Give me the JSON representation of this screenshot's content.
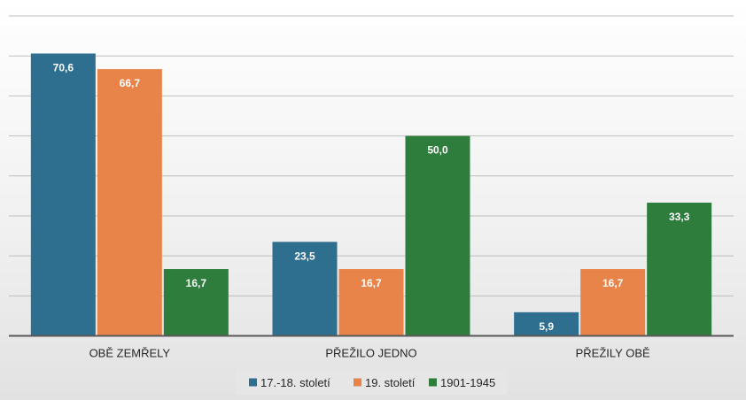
{
  "chart_data": {
    "type": "bar",
    "title": "",
    "xlabel": "",
    "ylabel": "",
    "categories": [
      "OBĚ ZEMŘELY",
      "PŘEŽILO JEDNO",
      "PŘEŽILY OBĚ"
    ],
    "series": [
      {
        "name": "17.-18. století",
        "color": "#2e6e8e",
        "values": [
          70.6,
          23.5,
          5.9
        ],
        "labels": [
          "70,6",
          "23,5",
          "5,9"
        ]
      },
      {
        "name": "19. století",
        "color": "#e8844a",
        "values": [
          66.7,
          16.7,
          16.7
        ],
        "labels": [
          "66,7",
          "16,7",
          "16,7"
        ]
      },
      {
        "name": "1901-1945",
        "color": "#2e7d3c",
        "values": [
          16.7,
          50.0,
          33.3
        ],
        "labels": [
          "16,7",
          "50,0",
          "33,3"
        ]
      }
    ],
    "ylim": [
      0,
      80
    ],
    "grid": true,
    "tick_labels_visible": false,
    "legend_position": "bottom",
    "axis_color": "#595959",
    "grid_color": "#bfbfbf"
  }
}
